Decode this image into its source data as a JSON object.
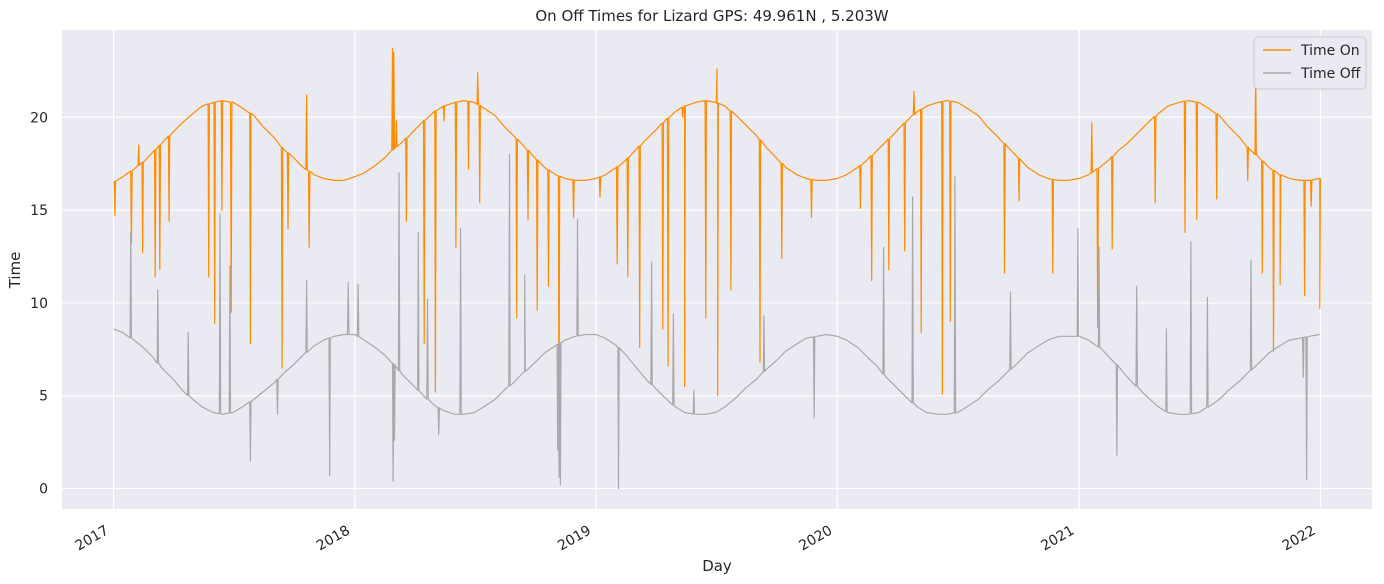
{
  "chart_data": {
    "type": "line",
    "title": "On Off Times for Lizard  GPS: 49.961N , 5.203W",
    "xlabel": "Day",
    "ylabel": "Time",
    "x_domain": [
      "2016-10-15",
      "2022-03-20"
    ],
    "xlim_years": [
      2016.76,
      2022.22
    ],
    "ylim": [
      -1.1,
      24.7
    ],
    "x_ticks": [
      "2017",
      "2018",
      "2019",
      "2020",
      "2021",
      "2022"
    ],
    "y_ticks": [
      0,
      5,
      10,
      15,
      20
    ],
    "grid": true,
    "legend_position": "top-right",
    "background": "#eaeaf2",
    "series": [
      {
        "name": "Time On",
        "color": "#ff8c00",
        "x": [
          "2017-01-01",
          "2017-01-15",
          "2017-02-01",
          "2017-02-15",
          "2017-03-01",
          "2017-03-15",
          "2017-04-01",
          "2017-04-15",
          "2017-05-01",
          "2017-05-15",
          "2017-06-01",
          "2017-06-15",
          "2017-07-01",
          "2017-07-15",
          "2017-08-01",
          "2017-08-15",
          "2017-09-01",
          "2017-09-15",
          "2017-10-01",
          "2017-10-15",
          "2017-11-01",
          "2017-11-15",
          "2017-12-01",
          "2017-12-15",
          "2018-01-01",
          "2018-01-15",
          "2018-02-01",
          "2018-02-15",
          "2018-03-01",
          "2018-03-15",
          "2018-04-01",
          "2018-04-15",
          "2018-05-01",
          "2018-05-15",
          "2018-06-01",
          "2018-06-15",
          "2018-07-01",
          "2018-07-15",
          "2018-08-01",
          "2018-08-15",
          "2018-09-01",
          "2018-09-15",
          "2018-10-01",
          "2018-10-15",
          "2018-11-01",
          "2018-11-15",
          "2018-12-01",
          "2018-12-15",
          "2019-01-01",
          "2019-01-15",
          "2019-02-01",
          "2019-02-15",
          "2019-03-01",
          "2019-03-15",
          "2019-04-01",
          "2019-04-15",
          "2019-05-01",
          "2019-05-15",
          "2019-06-01",
          "2019-06-15",
          "2019-07-01",
          "2019-07-15",
          "2019-08-01",
          "2019-08-15",
          "2019-09-01",
          "2019-09-15",
          "2019-10-01",
          "2019-10-15",
          "2019-11-01",
          "2019-11-15",
          "2019-12-01",
          "2019-12-15",
          "2020-01-01",
          "2020-01-15",
          "2020-02-01",
          "2020-02-15",
          "2020-03-01",
          "2020-03-15",
          "2020-04-01",
          "2020-04-15",
          "2020-05-01",
          "2020-05-15",
          "2020-06-01",
          "2020-06-15",
          "2020-07-01",
          "2020-07-15",
          "2020-08-01",
          "2020-08-15",
          "2020-09-01",
          "2020-09-15",
          "2020-10-01",
          "2020-10-15",
          "2020-11-01",
          "2020-11-15",
          "2020-12-01",
          "2020-12-15",
          "2021-01-01",
          "2021-01-15",
          "2021-02-01",
          "2021-02-15",
          "2021-03-01",
          "2021-03-15",
          "2021-04-01",
          "2021-04-15",
          "2021-05-01",
          "2021-05-15",
          "2021-06-01",
          "2021-06-15",
          "2021-07-01",
          "2021-07-15",
          "2021-08-01",
          "2021-08-15",
          "2021-09-01",
          "2021-09-15",
          "2021-10-01",
          "2021-10-15",
          "2021-11-01",
          "2021-11-15",
          "2021-12-01",
          "2021-12-15",
          "2021-12-31"
        ],
        "y": [
          16.5,
          16.8,
          17.2,
          17.6,
          18.1,
          18.6,
          19.2,
          19.7,
          20.2,
          20.6,
          20.8,
          20.9,
          20.8,
          20.5,
          20.1,
          19.5,
          18.9,
          18.3,
          17.8,
          17.3,
          16.9,
          16.7,
          16.6,
          16.6,
          16.8,
          17.0,
          17.4,
          17.8,
          18.3,
          18.7,
          19.3,
          19.8,
          20.3,
          20.6,
          20.8,
          20.9,
          20.8,
          20.5,
          20.1,
          19.5,
          18.9,
          18.4,
          17.8,
          17.3,
          16.9,
          16.7,
          16.6,
          16.6,
          16.7,
          16.9,
          17.3,
          17.7,
          18.2,
          18.7,
          19.3,
          19.8,
          20.3,
          20.6,
          20.8,
          20.9,
          20.8,
          20.6,
          20.1,
          19.6,
          19.0,
          18.4,
          17.8,
          17.3,
          16.9,
          16.7,
          16.6,
          16.6,
          16.7,
          16.9,
          17.3,
          17.7,
          18.2,
          18.7,
          19.3,
          19.8,
          20.3,
          20.6,
          20.8,
          20.9,
          20.8,
          20.5,
          20.1,
          19.5,
          18.9,
          18.4,
          17.8,
          17.3,
          16.9,
          16.7,
          16.6,
          16.6,
          16.7,
          16.9,
          17.3,
          17.7,
          18.2,
          18.6,
          19.2,
          19.7,
          20.2,
          20.6,
          20.8,
          20.9,
          20.8,
          20.5,
          20.1,
          19.5,
          18.9,
          18.3,
          17.8,
          17.3,
          16.9,
          16.7,
          16.6,
          16.6,
          16.7
        ]
      },
      {
        "name": "Time Off",
        "color": "#a9a9a9",
        "x": [
          "2017-01-01",
          "2017-01-15",
          "2017-02-01",
          "2017-02-15",
          "2017-03-01",
          "2017-03-15",
          "2017-04-01",
          "2017-04-15",
          "2017-05-01",
          "2017-05-15",
          "2017-06-01",
          "2017-06-15",
          "2017-07-01",
          "2017-07-15",
          "2017-08-01",
          "2017-08-15",
          "2017-09-01",
          "2017-09-15",
          "2017-10-01",
          "2017-10-15",
          "2017-11-01",
          "2017-11-15",
          "2017-12-01",
          "2017-12-15",
          "2018-01-01",
          "2018-01-15",
          "2018-02-01",
          "2018-02-15",
          "2018-03-01",
          "2018-03-15",
          "2018-04-01",
          "2018-04-15",
          "2018-05-01",
          "2018-05-15",
          "2018-06-01",
          "2018-06-15",
          "2018-07-01",
          "2018-07-15",
          "2018-08-01",
          "2018-08-15",
          "2018-09-01",
          "2018-09-15",
          "2018-10-01",
          "2018-10-15",
          "2018-11-01",
          "2018-11-15",
          "2018-12-01",
          "2018-12-15",
          "2019-01-01",
          "2019-01-15",
          "2019-02-01",
          "2019-02-15",
          "2019-03-01",
          "2019-03-15",
          "2019-04-01",
          "2019-04-15",
          "2019-05-01",
          "2019-05-15",
          "2019-06-01",
          "2019-06-15",
          "2019-07-01",
          "2019-07-15",
          "2019-08-01",
          "2019-08-15",
          "2019-09-01",
          "2019-09-15",
          "2019-10-01",
          "2019-10-15",
          "2019-11-01",
          "2019-11-15",
          "2019-12-01",
          "2019-12-15",
          "2020-01-01",
          "2020-01-15",
          "2020-02-01",
          "2020-02-15",
          "2020-03-01",
          "2020-03-15",
          "2020-04-01",
          "2020-04-15",
          "2020-05-01",
          "2020-05-15",
          "2020-06-01",
          "2020-06-15",
          "2020-07-01",
          "2020-07-15",
          "2020-08-01",
          "2020-08-15",
          "2020-09-01",
          "2020-09-15",
          "2020-10-01",
          "2020-10-15",
          "2020-11-01",
          "2020-11-15",
          "2020-12-01",
          "2020-12-15",
          "2021-01-01",
          "2021-01-15",
          "2021-02-01",
          "2021-02-15",
          "2021-03-01",
          "2021-03-15",
          "2021-04-01",
          "2021-04-15",
          "2021-05-01",
          "2021-05-15",
          "2021-06-01",
          "2021-06-15",
          "2021-07-01",
          "2021-07-15",
          "2021-08-01",
          "2021-08-15",
          "2021-09-01",
          "2021-09-15",
          "2021-10-01",
          "2021-10-15",
          "2021-11-01",
          "2021-11-15",
          "2021-12-01",
          "2021-12-15",
          "2021-12-31"
        ],
        "y": [
          8.6,
          8.4,
          8.0,
          7.6,
          7.1,
          6.5,
          5.9,
          5.3,
          4.8,
          4.4,
          4.1,
          4.0,
          4.1,
          4.4,
          4.8,
          5.2,
          5.7,
          6.2,
          6.7,
          7.2,
          7.7,
          8.0,
          8.2,
          8.3,
          8.3,
          8.0,
          7.6,
          7.2,
          6.7,
          6.1,
          5.5,
          5.0,
          4.5,
          4.2,
          4.0,
          4.0,
          4.1,
          4.4,
          4.8,
          5.3,
          5.8,
          6.3,
          6.8,
          7.3,
          7.7,
          8.0,
          8.2,
          8.3,
          8.3,
          8.1,
          7.7,
          7.2,
          6.6,
          6.0,
          5.4,
          4.9,
          4.4,
          4.1,
          4.0,
          4.0,
          4.1,
          4.4,
          4.9,
          5.4,
          5.9,
          6.4,
          6.9,
          7.4,
          7.8,
          8.1,
          8.2,
          8.3,
          8.2,
          8.0,
          7.6,
          7.1,
          6.6,
          6.0,
          5.4,
          4.9,
          4.4,
          4.1,
          4.0,
          4.0,
          4.1,
          4.4,
          4.8,
          5.3,
          5.8,
          6.3,
          6.8,
          7.3,
          7.7,
          8.0,
          8.2,
          8.2,
          8.2,
          8.0,
          7.6,
          7.1,
          6.6,
          6.0,
          5.4,
          4.9,
          4.4,
          4.1,
          4.0,
          4.0,
          4.1,
          4.4,
          4.8,
          5.3,
          5.8,
          6.3,
          6.8,
          7.3,
          7.7,
          8.0,
          8.1,
          8.2,
          8.3
        ]
      }
    ],
    "outliers_time_on": [
      {
        "x": "2017-01-03",
        "y": 14.7
      },
      {
        "x": "2017-01-28",
        "y": 13.2
      },
      {
        "x": "2017-02-08",
        "y": 18.5
      },
      {
        "x": "2017-02-14",
        "y": 12.7
      },
      {
        "x": "2017-03-05",
        "y": 11.4
      },
      {
        "x": "2017-03-12",
        "y": 11.8
      },
      {
        "x": "2017-03-26",
        "y": 14.4
      },
      {
        "x": "2017-05-25",
        "y": 11.4
      },
      {
        "x": "2017-06-03",
        "y": 8.9
      },
      {
        "x": "2017-06-14",
        "y": 15.0
      },
      {
        "x": "2017-06-28",
        "y": 9.5
      },
      {
        "x": "2017-07-27",
        "y": 7.8
      },
      {
        "x": "2017-09-13",
        "y": 6.5
      },
      {
        "x": "2017-09-22",
        "y": 14.0
      },
      {
        "x": "2017-10-20",
        "y": 21.2
      },
      {
        "x": "2017-10-24",
        "y": 13.0
      },
      {
        "x": "2018-02-27",
        "y": 23.7
      },
      {
        "x": "2018-03-01",
        "y": 23.5
      },
      {
        "x": "2018-03-05",
        "y": 19.8
      },
      {
        "x": "2018-03-20",
        "y": 14.4
      },
      {
        "x": "2018-04-16",
        "y": 7.8
      },
      {
        "x": "2018-05-03",
        "y": 5.2
      },
      {
        "x": "2018-05-16",
        "y": 19.8
      },
      {
        "x": "2018-06-03",
        "y": 13.0
      },
      {
        "x": "2018-06-22",
        "y": 17.2
      },
      {
        "x": "2018-07-06",
        "y": 22.4
      },
      {
        "x": "2018-07-09",
        "y": 15.4
      },
      {
        "x": "2018-09-03",
        "y": 9.2
      },
      {
        "x": "2018-09-20",
        "y": 14.5
      },
      {
        "x": "2018-10-04",
        "y": 9.6
      },
      {
        "x": "2018-10-21",
        "y": 10.9
      },
      {
        "x": "2018-11-06",
        "y": 2.9
      },
      {
        "x": "2018-11-28",
        "y": 14.6
      },
      {
        "x": "2019-01-07",
        "y": 15.7
      },
      {
        "x": "2019-02-02",
        "y": 12.1
      },
      {
        "x": "2019-02-18",
        "y": 11.4
      },
      {
        "x": "2019-03-08",
        "y": 7.6
      },
      {
        "x": "2019-04-12",
        "y": 8.6
      },
      {
        "x": "2019-04-20",
        "y": 6.6
      },
      {
        "x": "2019-05-12",
        "y": 20.0
      },
      {
        "x": "2019-05-15",
        "y": 5.5
      },
      {
        "x": "2019-06-16",
        "y": 9.2
      },
      {
        "x": "2019-07-03",
        "y": 22.6
      },
      {
        "x": "2019-07-04",
        "y": 5.0
      },
      {
        "x": "2019-07-24",
        "y": 10.7
      },
      {
        "x": "2019-09-06",
        "y": 6.8
      },
      {
        "x": "2019-10-09",
        "y": 12.4
      },
      {
        "x": "2019-11-23",
        "y": 14.6
      },
      {
        "x": "2020-02-05",
        "y": 15.1
      },
      {
        "x": "2020-02-22",
        "y": 11.2
      },
      {
        "x": "2020-03-19",
        "y": 11.8
      },
      {
        "x": "2020-04-12",
        "y": 12.8
      },
      {
        "x": "2020-04-26",
        "y": 21.4
      },
      {
        "x": "2020-05-07",
        "y": 8.4
      },
      {
        "x": "2020-06-08",
        "y": 5.1
      },
      {
        "x": "2020-06-20",
        "y": 9.0
      },
      {
        "x": "2020-09-10",
        "y": 11.6
      },
      {
        "x": "2020-10-02",
        "y": 15.5
      },
      {
        "x": "2020-11-22",
        "y": 11.6
      },
      {
        "x": "2021-01-20",
        "y": 19.7
      },
      {
        "x": "2021-01-29",
        "y": 8.7
      },
      {
        "x": "2021-02-20",
        "y": 12.9
      },
      {
        "x": "2021-04-26",
        "y": 15.4
      },
      {
        "x": "2021-06-10",
        "y": 13.8
      },
      {
        "x": "2021-06-28",
        "y": 14.5
      },
      {
        "x": "2021-07-28",
        "y": 15.6
      },
      {
        "x": "2021-09-13",
        "y": 16.6
      },
      {
        "x": "2021-09-25",
        "y": 22.7
      },
      {
        "x": "2021-10-05",
        "y": 11.6
      },
      {
        "x": "2021-10-22",
        "y": 7.4
      },
      {
        "x": "2021-11-01",
        "y": 11.0
      },
      {
        "x": "2021-12-08",
        "y": 10.4
      },
      {
        "x": "2021-12-18",
        "y": 15.2
      },
      {
        "x": "2021-12-31",
        "y": 9.7
      }
    ],
    "outliers_time_off": [
      {
        "x": "2017-01-27",
        "y": 13.8
      },
      {
        "x": "2017-03-09",
        "y": 10.7
      },
      {
        "x": "2017-04-24",
        "y": 8.4
      },
      {
        "x": "2017-06-11",
        "y": 14.8
      },
      {
        "x": "2017-06-26",
        "y": 12.0
      },
      {
        "x": "2017-07-27",
        "y": 1.5
      },
      {
        "x": "2017-09-06",
        "y": 4.0
      },
      {
        "x": "2017-10-20",
        "y": 11.2
      },
      {
        "x": "2017-11-24",
        "y": 0.7
      },
      {
        "x": "2017-12-22",
        "y": 11.1
      },
      {
        "x": "2018-01-06",
        "y": 11.0
      },
      {
        "x": "2018-02-28",
        "y": 0.4
      },
      {
        "x": "2018-03-02",
        "y": 2.6
      },
      {
        "x": "2018-03-09",
        "y": 17.0
      },
      {
        "x": "2018-04-07",
        "y": 13.8
      },
      {
        "x": "2018-04-21",
        "y": 10.2
      },
      {
        "x": "2018-05-08",
        "y": 2.9
      },
      {
        "x": "2018-06-10",
        "y": 14.0
      },
      {
        "x": "2018-08-23",
        "y": 18.0
      },
      {
        "x": "2018-09-15",
        "y": 11.5
      },
      {
        "x": "2018-11-04",
        "y": 2.1
      },
      {
        "x": "2018-11-06",
        "y": 0.6
      },
      {
        "x": "2018-11-08",
        "y": 0.2
      },
      {
        "x": "2018-12-04",
        "y": 14.5
      },
      {
        "x": "2019-02-04",
        "y": 0.0
      },
      {
        "x": "2019-03-26",
        "y": 12.2
      },
      {
        "x": "2019-04-28",
        "y": 9.4
      },
      {
        "x": "2019-05-29",
        "y": 5.3
      },
      {
        "x": "2019-09-12",
        "y": 9.3
      },
      {
        "x": "2019-11-27",
        "y": 3.8
      },
      {
        "x": "2020-03-11",
        "y": 13.0
      },
      {
        "x": "2020-04-24",
        "y": 15.7
      },
      {
        "x": "2020-06-27",
        "y": 16.8
      },
      {
        "x": "2020-09-19",
        "y": 10.6
      },
      {
        "x": "2020-12-30",
        "y": 14.0
      },
      {
        "x": "2021-01-31",
        "y": 13.0
      },
      {
        "x": "2021-02-27",
        "y": 1.8
      },
      {
        "x": "2021-03-29",
        "y": 10.9
      },
      {
        "x": "2021-05-13",
        "y": 8.6
      },
      {
        "x": "2021-06-19",
        "y": 13.3
      },
      {
        "x": "2021-07-14",
        "y": 10.3
      },
      {
        "x": "2021-09-18",
        "y": 12.3
      },
      {
        "x": "2021-12-11",
        "y": 0.5
      },
      {
        "x": "2021-12-06",
        "y": 6.0
      }
    ]
  }
}
